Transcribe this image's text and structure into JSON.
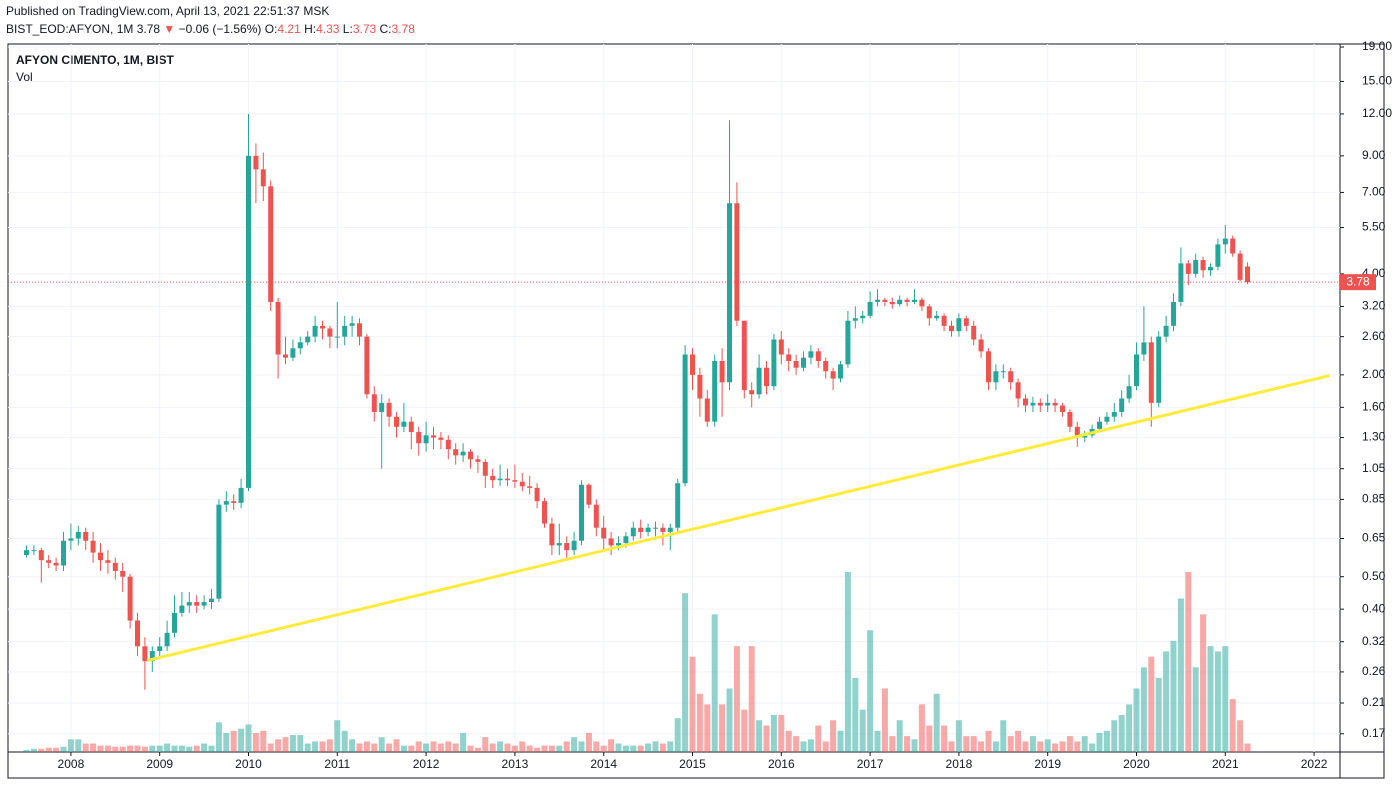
{
  "header": {
    "published": "Published on TradingView.com, April 13, 2021 22:51:37 MSK",
    "symbol": "BIST_EOD:AFYON, 1M",
    "arrow": "▼",
    "change": "−0.06 (−1.56%)",
    "ohlc_labels": [
      "O:",
      "H:",
      "L:",
      "C:"
    ]
  },
  "chart_data": {
    "type": "candlestick",
    "legend": [
      "AFYON CIMENTO, 1M, BIST",
      "Vol"
    ],
    "log_scale": true,
    "grid": true,
    "up_color": "#26a69a",
    "down_color": "#ef5350",
    "trendline_color": "#ffeb3b",
    "ylim": [
      0.15,
      19.4
    ],
    "yticks": [
      {
        "value": 19,
        "label": "19.00"
      },
      {
        "value": 15,
        "label": "15.00"
      },
      {
        "value": 12,
        "label": "12.00"
      },
      {
        "value": 9,
        "label": "9.00"
      },
      {
        "value": 7,
        "label": "7.00"
      },
      {
        "value": 5.5,
        "label": "5.50"
      },
      {
        "value": 4,
        "label": "4.00"
      },
      {
        "value": 3.2,
        "label": "3.20"
      },
      {
        "value": 2.6,
        "label": "2.60"
      },
      {
        "value": 2,
        "label": "2.00"
      },
      {
        "value": 1.6,
        "label": "1.60"
      },
      {
        "value": 1.3,
        "label": "1.30"
      },
      {
        "value": 1.05,
        "label": "1.05"
      },
      {
        "value": 0.85,
        "label": "0.85"
      },
      {
        "value": 0.65,
        "label": "0.65"
      },
      {
        "value": 0.5,
        "label": "0.50"
      },
      {
        "value": 0.4,
        "label": "0.40"
      },
      {
        "value": 0.32,
        "label": "0.32"
      },
      {
        "value": 0.26,
        "label": "0.26"
      },
      {
        "value": 0.21,
        "label": "0.21"
      },
      {
        "value": 0.17,
        "label": "0.17"
      }
    ],
    "xlim": [
      -2.5,
      177.5
    ],
    "xticks": [
      {
        "value": 6,
        "label": "2008"
      },
      {
        "value": 18,
        "label": "2009"
      },
      {
        "value": 30,
        "label": "2010"
      },
      {
        "value": 42,
        "label": "2011"
      },
      {
        "value": 54,
        "label": "2012"
      },
      {
        "value": 66,
        "label": "2013"
      },
      {
        "value": 78,
        "label": "2014"
      },
      {
        "value": 90,
        "label": "2015"
      },
      {
        "value": 102,
        "label": "2016"
      },
      {
        "value": 114,
        "label": "2017"
      },
      {
        "value": 126,
        "label": "2018"
      },
      {
        "value": 138,
        "label": "2019"
      },
      {
        "value": 150,
        "label": "2020"
      },
      {
        "value": 162,
        "label": "2021"
      },
      {
        "value": 174,
        "label": "2022"
      }
    ],
    "open": [
      0.58,
      0.6,
      0.6,
      0.56,
      0.55,
      0.54,
      0.64,
      0.65,
      0.68,
      0.64,
      0.59,
      0.56,
      0.55,
      0.52,
      0.5,
      0.37,
      0.31,
      0.28,
      0.3,
      0.31,
      0.34,
      0.39,
      0.41,
      0.42,
      0.41,
      0.42,
      0.43,
      0.82,
      0.84,
      0.83,
      0.92,
      9.0,
      8.2,
      7.3,
      3.3,
      2.3,
      2.25,
      2.4,
      2.5,
      2.6,
      2.8,
      2.75,
      2.6,
      2.6,
      2.8,
      2.85,
      2.6,
      1.75,
      1.55,
      1.65,
      1.5,
      1.4,
      1.45,
      1.35,
      1.25,
      1.32,
      1.3,
      1.28,
      1.2,
      1.15,
      1.18,
      1.12,
      1.1,
      1.0,
      0.97,
      0.98,
      0.97,
      0.96,
      0.93,
      0.92,
      0.84,
      0.72,
      0.62,
      0.63,
      0.6,
      0.64,
      0.94,
      0.82,
      0.7,
      0.65,
      0.62,
      0.63,
      0.66,
      0.7,
      0.68,
      0.7,
      0.7,
      0.68,
      0.7,
      0.95,
      2.3,
      2.0,
      1.7,
      1.45,
      2.2,
      1.9,
      6.5,
      2.9,
      1.8,
      1.75,
      2.1,
      1.85,
      2.55,
      2.3,
      2.2,
      2.1,
      2.25,
      2.35,
      2.2,
      2.05,
      1.95,
      2.15,
      2.9,
      2.95,
      3.0,
      3.3,
      3.35,
      3.3,
      3.25,
      3.35,
      3.3,
      3.35,
      3.2,
      2.95,
      3.0,
      2.8,
      2.7,
      2.95,
      2.8,
      2.55,
      2.35,
      1.9,
      2.05,
      2.05,
      1.9,
      1.7,
      1.62,
      1.65,
      1.62,
      1.65,
      1.62,
      1.55,
      1.4,
      1.3,
      1.32,
      1.38,
      1.45,
      1.5,
      1.55,
      1.7,
      1.85,
      2.3,
      2.5,
      1.65,
      2.6,
      2.8,
      3.3,
      4.3,
      4.0,
      4.4,
      4.1,
      4.2,
      4.9,
      5.1,
      4.6,
      4.21
    ],
    "high": [
      0.62,
      0.62,
      0.61,
      0.58,
      0.57,
      0.68,
      0.72,
      0.71,
      0.7,
      0.68,
      0.63,
      0.6,
      0.57,
      0.55,
      0.51,
      0.39,
      0.33,
      0.31,
      0.33,
      0.37,
      0.44,
      0.45,
      0.45,
      0.44,
      0.44,
      0.46,
      0.85,
      0.9,
      0.88,
      0.98,
      12.0,
      9.8,
      9.2,
      7.6,
      3.4,
      2.6,
      2.55,
      2.6,
      2.7,
      3.0,
      2.9,
      2.8,
      3.3,
      3.0,
      3.0,
      2.95,
      2.65,
      1.85,
      1.75,
      1.7,
      1.55,
      1.65,
      1.5,
      1.4,
      1.45,
      1.4,
      1.35,
      1.32,
      1.25,
      1.25,
      1.2,
      1.15,
      1.12,
      1.05,
      1.08,
      1.05,
      1.08,
      1.02,
      1.0,
      0.95,
      0.86,
      0.75,
      0.72,
      0.66,
      0.68,
      0.97,
      0.95,
      0.85,
      0.76,
      0.68,
      0.66,
      0.68,
      0.73,
      0.74,
      0.72,
      0.73,
      0.72,
      0.72,
      0.98,
      2.45,
      2.4,
      2.1,
      1.8,
      2.3,
      2.4,
      11.5,
      7.5,
      2.9,
      1.9,
      2.3,
      2.2,
      2.65,
      2.7,
      2.4,
      2.3,
      2.35,
      2.45,
      2.4,
      2.25,
      2.1,
      2.2,
      3.1,
      3.2,
      3.1,
      3.55,
      3.6,
      3.4,
      3.4,
      3.45,
      3.4,
      3.6,
      3.4,
      3.25,
      3.1,
      3.05,
      2.9,
      3.05,
      3.0,
      2.9,
      2.65,
      2.4,
      2.15,
      2.15,
      2.1,
      1.95,
      1.75,
      1.72,
      1.7,
      1.75,
      1.7,
      1.65,
      1.58,
      1.45,
      1.36,
      1.42,
      1.5,
      1.55,
      1.65,
      1.8,
      2.0,
      2.5,
      3.2,
      2.6,
      2.7,
      3.0,
      3.5,
      4.8,
      4.4,
      4.6,
      4.5,
      4.3,
      5.1,
      5.6,
      5.2,
      4.7,
      4.33
    ],
    "low": [
      0.57,
      0.58,
      0.48,
      0.53,
      0.52,
      0.52,
      0.6,
      0.62,
      0.6,
      0.55,
      0.52,
      0.51,
      0.49,
      0.45,
      0.35,
      0.29,
      0.23,
      0.26,
      0.29,
      0.3,
      0.33,
      0.38,
      0.39,
      0.39,
      0.4,
      0.4,
      0.42,
      0.78,
      0.79,
      0.8,
      0.9,
      6.5,
      6.6,
      3.1,
      1.95,
      2.15,
      2.2,
      2.3,
      2.45,
      2.5,
      2.55,
      2.4,
      2.4,
      2.45,
      2.6,
      2.45,
      1.7,
      1.45,
      1.05,
      1.4,
      1.3,
      1.35,
      1.2,
      1.15,
      1.18,
      1.2,
      1.2,
      1.12,
      1.08,
      1.1,
      1.05,
      1.02,
      0.92,
      0.92,
      0.93,
      0.93,
      0.92,
      0.9,
      0.88,
      0.8,
      0.7,
      0.58,
      0.58,
      0.56,
      0.58,
      0.62,
      0.8,
      0.66,
      0.6,
      0.58,
      0.6,
      0.61,
      0.64,
      0.65,
      0.66,
      0.66,
      0.62,
      0.6,
      0.67,
      0.93,
      1.8,
      1.5,
      1.4,
      1.4,
      1.5,
      1.8,
      2.8,
      1.7,
      1.6,
      1.7,
      1.75,
      1.8,
      2.15,
      2.05,
      2.0,
      2.05,
      2.15,
      2.1,
      1.95,
      1.8,
      1.9,
      2.1,
      2.75,
      2.85,
      2.95,
      3.2,
      3.2,
      3.15,
      3.2,
      3.2,
      3.25,
      3.1,
      2.8,
      2.9,
      2.7,
      2.6,
      2.6,
      2.7,
      2.45,
      2.25,
      1.8,
      1.8,
      1.95,
      1.8,
      1.6,
      1.55,
      1.55,
      1.55,
      1.55,
      1.55,
      1.5,
      1.35,
      1.22,
      1.26,
      1.3,
      1.35,
      1.42,
      1.45,
      1.5,
      1.65,
      1.8,
      2.2,
      1.4,
      1.6,
      2.5,
      2.7,
      3.2,
      3.7,
      3.9,
      3.9,
      3.95,
      4.1,
      4.6,
      4.5,
      3.8,
      3.73
    ],
    "close": [
      0.6,
      0.6,
      0.56,
      0.55,
      0.54,
      0.64,
      0.65,
      0.68,
      0.64,
      0.59,
      0.56,
      0.55,
      0.52,
      0.5,
      0.37,
      0.31,
      0.28,
      0.3,
      0.31,
      0.34,
      0.39,
      0.41,
      0.42,
      0.41,
      0.42,
      0.43,
      0.82,
      0.84,
      0.83,
      0.92,
      9.0,
      8.2,
      7.3,
      3.3,
      2.3,
      2.25,
      2.4,
      2.5,
      2.6,
      2.8,
      2.75,
      2.6,
      2.6,
      2.8,
      2.85,
      2.6,
      1.75,
      1.55,
      1.65,
      1.5,
      1.4,
      1.45,
      1.35,
      1.25,
      1.32,
      1.3,
      1.28,
      1.2,
      1.15,
      1.18,
      1.12,
      1.1,
      1.0,
      0.97,
      0.98,
      0.97,
      0.96,
      0.93,
      0.92,
      0.84,
      0.72,
      0.62,
      0.63,
      0.6,
      0.64,
      0.94,
      0.82,
      0.7,
      0.65,
      0.62,
      0.63,
      0.66,
      0.7,
      0.68,
      0.7,
      0.7,
      0.68,
      0.7,
      0.95,
      2.3,
      2.0,
      1.7,
      1.45,
      2.2,
      1.9,
      6.5,
      2.9,
      1.8,
      1.75,
      2.1,
      1.85,
      2.55,
      2.3,
      2.2,
      2.1,
      2.25,
      2.35,
      2.2,
      2.05,
      1.95,
      2.15,
      2.9,
      2.95,
      3.0,
      3.3,
      3.35,
      3.3,
      3.25,
      3.35,
      3.3,
      3.35,
      3.2,
      2.95,
      3.0,
      2.8,
      2.7,
      2.95,
      2.8,
      2.55,
      2.35,
      1.9,
      2.05,
      2.05,
      1.9,
      1.7,
      1.62,
      1.65,
      1.62,
      1.65,
      1.62,
      1.55,
      1.4,
      1.3,
      1.32,
      1.38,
      1.45,
      1.5,
      1.55,
      1.7,
      1.85,
      2.3,
      2.5,
      1.65,
      2.6,
      2.8,
      3.3,
      4.3,
      4.0,
      4.4,
      4.1,
      4.2,
      4.9,
      5.1,
      4.6,
      3.84,
      3.78
    ],
    "volume": [
      2,
      3,
      3,
      4,
      4,
      5,
      12,
      12,
      8,
      8,
      6,
      6,
      5,
      5,
      6,
      6,
      5,
      6,
      6,
      8,
      6,
      6,
      5,
      6,
      8,
      6,
      28,
      18,
      20,
      22,
      26,
      18,
      20,
      8,
      12,
      14,
      16,
      16,
      8,
      10,
      10,
      12,
      30,
      20,
      12,
      8,
      10,
      8,
      14,
      8,
      12,
      6,
      6,
      10,
      8,
      10,
      8,
      10,
      8,
      18,
      6,
      4,
      14,
      8,
      10,
      8,
      6,
      10,
      6,
      4,
      6,
      6,
      6,
      10,
      14,
      10,
      18,
      10,
      6,
      12,
      8,
      6,
      6,
      6,
      8,
      10,
      8,
      10,
      32,
      150,
      90,
      55,
      45,
      130,
      45,
      60,
      100,
      40,
      100,
      30,
      25,
      35,
      35,
      20,
      15,
      10,
      12,
      25,
      10,
      30,
      20,
      170,
      70,
      40,
      115,
      20,
      60,
      15,
      30,
      15,
      12,
      45,
      25,
      55,
      25,
      10,
      30,
      15,
      15,
      10,
      20,
      10,
      30,
      15,
      20,
      10,
      15,
      10,
      12,
      8,
      10,
      15,
      10,
      15,
      8,
      18,
      20,
      30,
      35,
      45,
      60,
      80,
      90,
      70,
      95,
      105,
      145,
      170,
      80,
      130,
      100,
      95,
      100,
      50,
      30,
      8
    ],
    "trendline": {
      "start": [
        16.3,
        0.281
      ],
      "end": [
        176.1,
        1.99
      ]
    }
  }
}
